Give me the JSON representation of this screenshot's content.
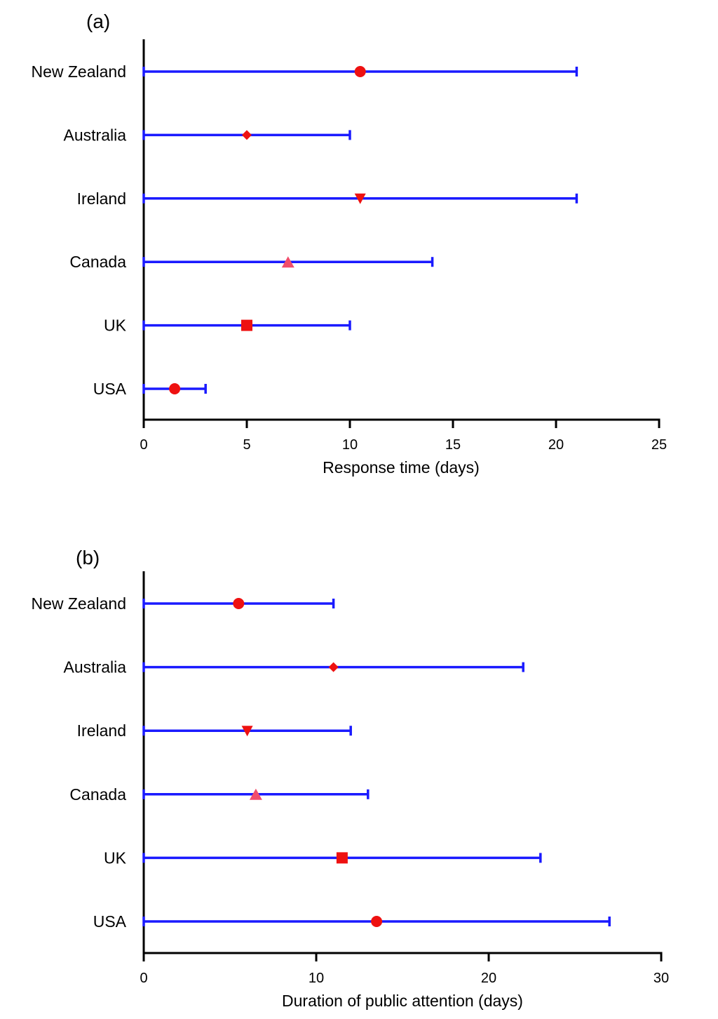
{
  "chart_data": [
    {
      "type": "range",
      "panel_label": "(a)",
      "title": "",
      "xlabel": "Response time (days)",
      "ylabel": "",
      "xlim": [
        0,
        25
      ],
      "xticks": [
        "0",
        "5",
        "10",
        "15",
        "20",
        "25"
      ],
      "xtick_values": [
        0,
        5,
        10,
        15,
        20,
        25
      ],
      "categories": [
        "New Zealand",
        "Australia",
        "Ireland",
        "Canada",
        "UK",
        "USA"
      ],
      "range_start": [
        0,
        0,
        0,
        0,
        0,
        0
      ],
      "range_end": [
        21,
        10,
        21,
        14,
        10,
        3
      ],
      "midpoint": [
        10.5,
        5,
        10.5,
        7,
        5,
        1.5
      ],
      "markers": [
        "circle",
        "diamond",
        "triangle-down",
        "triangle-up",
        "square",
        "circle"
      ],
      "colors": {
        "range_line": "#1a1aff",
        "marker": "#ee1111",
        "axis": "#000000"
      }
    },
    {
      "type": "range",
      "panel_label": "(b)",
      "title": "",
      "xlabel": "Duration of public attention (days)",
      "ylabel": "",
      "xlim": [
        0,
        30
      ],
      "xticks": [
        "0",
        "10",
        "20",
        "30"
      ],
      "xtick_values": [
        0,
        10,
        20,
        30
      ],
      "categories": [
        "New Zealand",
        "Australia",
        "Ireland",
        "Canada",
        "UK",
        "USA"
      ],
      "range_start": [
        0,
        0,
        0,
        0,
        0,
        0
      ],
      "range_end": [
        11,
        22,
        12,
        13,
        23,
        27
      ],
      "midpoint": [
        5.5,
        11,
        6,
        6.5,
        11.5,
        13.5
      ],
      "markers": [
        "circle",
        "diamond",
        "triangle-down",
        "triangle-up",
        "square",
        "circle"
      ],
      "colors": {
        "range_line": "#1a1aff",
        "marker": "#ee1111",
        "axis": "#000000"
      }
    }
  ]
}
